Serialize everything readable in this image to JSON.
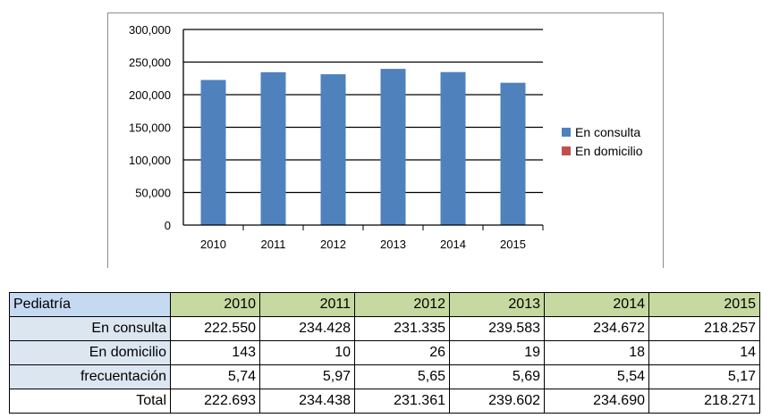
{
  "chart_data": {
    "type": "bar",
    "categories": [
      "2010",
      "2011",
      "2012",
      "2013",
      "2014",
      "2015"
    ],
    "series": [
      {
        "name": "En consulta",
        "color": "#4f81bd",
        "values": [
          222550,
          234428,
          231335,
          239583,
          234672,
          218257
        ]
      },
      {
        "name": "En domicilio",
        "color": "#c0504d",
        "values": [
          143,
          10,
          26,
          19,
          18,
          14
        ]
      }
    ],
    "y_ticks": [
      "0",
      "50,000",
      "100,000",
      "150,000",
      "200,000",
      "250,000",
      "300,000"
    ],
    "ylim": [
      0,
      300000
    ],
    "grid": true,
    "legend": "right"
  },
  "table": {
    "header": [
      "Pediatría",
      "2010",
      "2011",
      "2012",
      "2013",
      "2014",
      "2015"
    ],
    "rows": [
      [
        "En consulta",
        "222.550",
        "234.428",
        "231.335",
        "239.583",
        "234.672",
        "218.257"
      ],
      [
        "En domicilio",
        "143",
        "10",
        "26",
        "19",
        "18",
        "14"
      ],
      [
        "frecuentación",
        "5,74",
        "5,97",
        "5,65",
        "5,69",
        "5,54",
        "5,17"
      ],
      [
        "Total",
        "222.693",
        "234.438",
        "231.361",
        "239.602",
        "234.690",
        "218.271"
      ]
    ]
  }
}
